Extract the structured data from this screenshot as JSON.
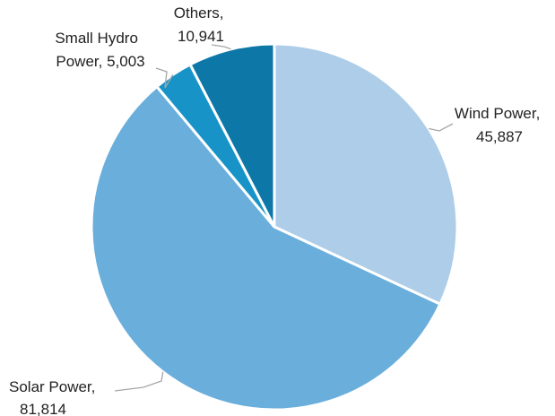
{
  "chart_data": {
    "type": "pie",
    "title": "",
    "slices": [
      {
        "label": "Wind Power",
        "value": 45887,
        "value_label": "45,887",
        "color": "#adcde8"
      },
      {
        "label": "Solar Power",
        "value": 81814,
        "value_label": "81,814",
        "color": "#6aaedc"
      },
      {
        "label": "Small Hydro Power",
        "value": 5003,
        "value_label": "5,003",
        "color": "#1893c8"
      },
      {
        "label": "Others",
        "value": 10941,
        "value_label": "10,941",
        "color": "#0d77a8"
      }
    ],
    "legend": "none",
    "data_labels": "outside-with-leader-lines"
  }
}
